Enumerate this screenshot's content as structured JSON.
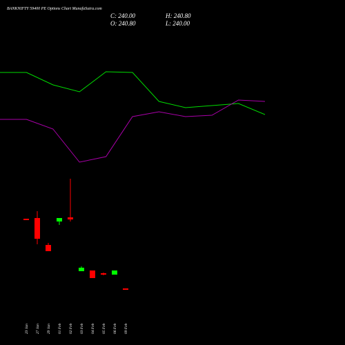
{
  "chart_data": [
    {
      "type": "candlestick",
      "title": "BANKNIFTY 59400  PE Options  Chart MunafaSutra.com",
      "ohlc_labels": [
        "C: 240.00",
        "H: 240.80",
        "O: 240.80",
        "L: 240.00"
      ],
      "categories": [
        "23 Jan",
        "27 Jan",
        "29 Jan",
        "01 Feb",
        "02 Feb",
        "03 Feb",
        "04 Feb",
        "05 Feb",
        "06 Feb",
        "09 Feb"
      ],
      "open": [
        281.2,
        281.6,
        266.0,
        279.6,
        282.0,
        250.8,
        251.2,
        249.6,
        248.8,
        240.8
      ],
      "high": [
        281.2,
        285.6,
        267.2,
        281.6,
        304.4,
        253.6,
        251.2,
        250.0,
        251.2,
        240.8
      ],
      "low": [
        280.4,
        266.4,
        262.4,
        277.6,
        279.6,
        250.8,
        246.8,
        248.4,
        248.8,
        240.0
      ],
      "close": [
        280.4,
        269.6,
        262.4,
        281.6,
        280.8,
        252.8,
        246.8,
        248.8,
        251.2,
        240.0
      ],
      "up_color": "#00ff00",
      "down_color": "#ff0000",
      "ylim": [
        232,
        312
      ]
    },
    {
      "type": "line",
      "categories": [
        null,
        null,
        null,
        null,
        null,
        null,
        null,
        null,
        null,
        null,
        null
      ],
      "series": [
        {
          "color": "#00dd00",
          "values": [
            195,
            195,
            177,
            167,
            196,
            195,
            153,
            144,
            147,
            150,
            134
          ]
        },
        {
          "color": "#aa00aa",
          "values": [
            127,
            127,
            113,
            65,
            73,
            131,
            138,
            131,
            133,
            155,
            153
          ]
        }
      ],
      "ylim": [
        0,
        300
      ]
    }
  ]
}
